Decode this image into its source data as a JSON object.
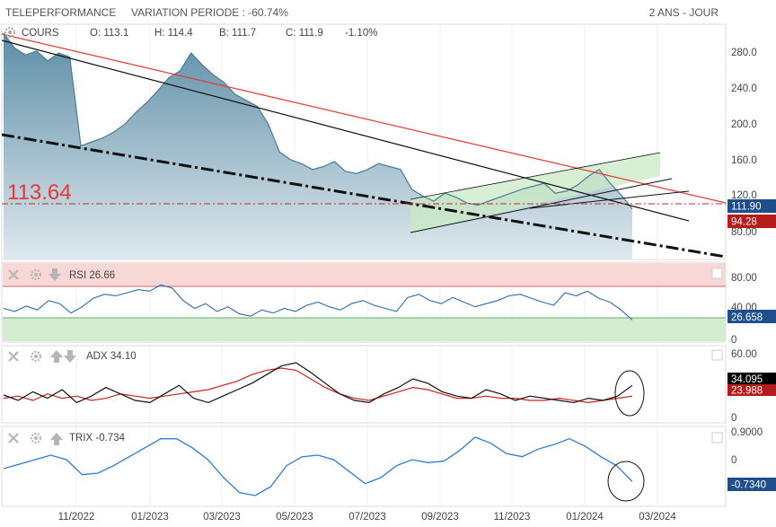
{
  "header": {
    "stock_name": "TELEPERFORMANCE",
    "variation_label": "VARIATION PERIODE : -60.74%",
    "period_label": "2 ANS - JOUR"
  },
  "ohlc": {
    "series_label": "COURS",
    "open": "O: 113.1",
    "high": "H: 114.4",
    "low": "B: 111.7",
    "close": "C: 111.9",
    "change": "-1.10%"
  },
  "annotations": {
    "level_value": "113.64",
    "last_price_badge": "111.90",
    "secondary_badge": "94.28",
    "rsi_badge": "26.658",
    "adx_badge": "34.095",
    "adx_badge_2": "23.988",
    "trix_badge": "-0.7340"
  },
  "indicators": {
    "rsi_label": "RSI 26.66",
    "adx_label": "ADX 34.10",
    "trix_label": "TRIX -0.734"
  },
  "colors": {
    "price_line": "#4a7d96",
    "price_fill_top": "#5d8ea6",
    "price_fill_bottom": "#dce8ef",
    "red_line": "#e53935",
    "green_zone": "#c9ebc4",
    "rsi_line": "#2b6cb0",
    "overbought_zone": "#f8d7d7",
    "oversold_zone": "#d4ecd0",
    "adx_di_plus": "#111111",
    "adx_di_minus": "#cc2222",
    "trix_line": "#2f7bd6",
    "badge_blue": "#1f4e8c",
    "badge_red": "#b71c1c",
    "badge_black": "#000000"
  },
  "chart_data": [
    {
      "type": "area",
      "title": "TELEPERFORMANCE",
      "y_ticks": [
        "280.0",
        "240.0",
        "200.0",
        "160.0",
        "120.0",
        "80.00"
      ],
      "ylim": [
        60,
        300
      ],
      "x_ticks": [
        "11/2022",
        "01/2023",
        "03/2023",
        "05/2023",
        "07/2023",
        "09/2023",
        "11/2023",
        "01/2024",
        "03/2024"
      ],
      "series": [
        {
          "name": "COURS",
          "values": [
            290,
            275,
            268,
            272,
            262,
            270,
            266,
            176,
            180,
            184,
            190,
            198,
            210,
            220,
            232,
            245,
            252,
            270,
            258,
            248,
            240,
            228,
            222,
            216,
            198,
            170,
            162,
            158,
            152,
            155,
            160,
            150,
            148,
            152,
            158,
            155,
            152,
            132,
            125,
            120,
            128,
            124,
            118,
            116,
            120,
            124,
            128,
            132,
            135,
            138,
            128,
            130,
            136,
            145,
            152,
            138,
            126,
            112
          ]
        }
      ]
    },
    {
      "type": "line",
      "title": "RSI",
      "y_ticks": [
        "80.00",
        "40.00",
        "0"
      ],
      "ylim": [
        0,
        100
      ],
      "series": [
        {
          "name": "RSI",
          "values": [
            42,
            38,
            45,
            40,
            52,
            48,
            36,
            44,
            55,
            60,
            58,
            62,
            66,
            64,
            72,
            68,
            52,
            42,
            48,
            38,
            44,
            35,
            32,
            40,
            36,
            42,
            38,
            46,
            50,
            44,
            40,
            48,
            52,
            46,
            42,
            38,
            56,
            60,
            52,
            48,
            56,
            50,
            44,
            48,
            52,
            58,
            60,
            55,
            50,
            46,
            62,
            58,
            64,
            55,
            50,
            40,
            27
          ]
        }
      ]
    },
    {
      "type": "line",
      "title": "ADX",
      "y_ticks": [
        "60.00",
        "0"
      ],
      "ylim": [
        0,
        70
      ],
      "series": [
        {
          "name": "ADX",
          "values": [
            25,
            20,
            28,
            22,
            30,
            18,
            24,
            32,
            26,
            20,
            18,
            26,
            34,
            22,
            18,
            24,
            30,
            36,
            44,
            52,
            55,
            46,
            36,
            26,
            20,
            18,
            26,
            32,
            40,
            36,
            28,
            24,
            22,
            30,
            26,
            20,
            24,
            22,
            20,
            18,
            22,
            20,
            24,
            34
          ]
        },
        {
          "name": "DI",
          "values": [
            22,
            24,
            20,
            26,
            22,
            24,
            20,
            22,
            26,
            24,
            22,
            24,
            26,
            28,
            30,
            34,
            38,
            44,
            48,
            50,
            48,
            40,
            32,
            26,
            22,
            20,
            24,
            28,
            32,
            30,
            26,
            22,
            22,
            24,
            22,
            22,
            20,
            20,
            22,
            20,
            18,
            20,
            22,
            24
          ]
        }
      ]
    },
    {
      "type": "line",
      "title": "TRIX",
      "y_ticks": [
        "0.9000",
        "0"
      ],
      "ylim": [
        -1.5,
        1.1
      ],
      "series": [
        {
          "name": "TRIX",
          "values": [
            -0.3,
            -0.15,
            0.0,
            0.15,
            0.0,
            -0.5,
            -0.45,
            -0.2,
            0.1,
            0.4,
            0.7,
            0.7,
            0.4,
            0.0,
            -0.6,
            -1.1,
            -1.2,
            -0.9,
            -0.2,
            0.1,
            0.15,
            0.0,
            -0.4,
            -0.8,
            -0.6,
            -0.2,
            0.0,
            -0.1,
            -0.05,
            0.3,
            0.75,
            0.55,
            0.2,
            0.1,
            0.35,
            0.5,
            0.7,
            0.45,
            0.1,
            -0.2,
            -0.73
          ]
        }
      ]
    }
  ]
}
